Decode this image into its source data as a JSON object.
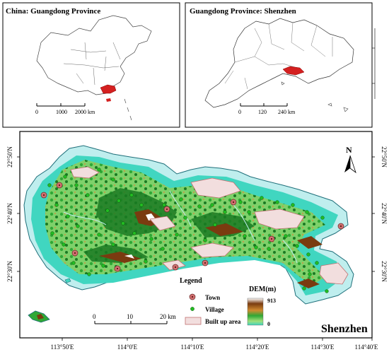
{
  "panels": {
    "china": {
      "title": "China: Guangdong Province",
      "scale_labels": [
        "0",
        "1000",
        "2000 km"
      ]
    },
    "guangdong": {
      "title": "Guangdong Province: Shenzhen",
      "scale_labels": [
        "0",
        "120",
        "240 km"
      ]
    },
    "main": {
      "place_name": "Shenzhen",
      "north_label": "N",
      "x_ticks": [
        "113°50'E",
        "114°0'E",
        "114°10'E",
        "114°20'E",
        "114°30'E",
        "114°40'E"
      ],
      "y_ticks": [
        "22°50'N",
        "22°40'N",
        "22°30'N"
      ],
      "scale_labels": [
        "0",
        "10",
        "20 km"
      ]
    }
  },
  "legend": {
    "title": "Legend",
    "town_label": "Town",
    "village_label": "Village",
    "built_up_label": "Built up area",
    "dem_title": "DEM(m)",
    "dem_max": "913",
    "dem_min": "0"
  },
  "colors": {
    "highlight": "#d42020",
    "water": "#bfeeee",
    "low": "#40d6c0",
    "green": "#2fa836",
    "dark_green": "#1a7a22",
    "brown": "#7a3b10",
    "built_up": "#f2dede",
    "built_up_edge": "#c07070",
    "town": "#d07070",
    "village": "#22bb22"
  }
}
